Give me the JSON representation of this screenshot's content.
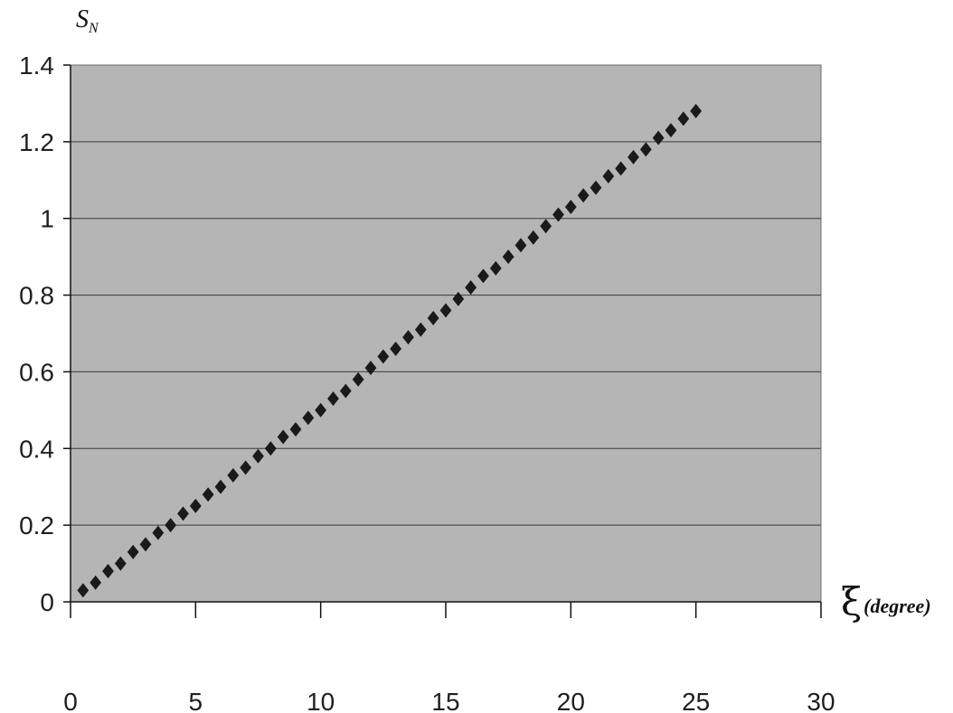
{
  "chart_data": {
    "type": "scatter",
    "ylabel": "S",
    "ylabel_subscript": "N",
    "xlabel_symbol": "ξ",
    "xlabel_unit": "(degree)",
    "xlim": [
      0,
      30
    ],
    "ylim": [
      0,
      1.4
    ],
    "x_ticks": [
      "0",
      "5",
      "10",
      "15",
      "20",
      "25",
      "30"
    ],
    "y_ticks": [
      "0",
      "0.2",
      "0.4",
      "0.6",
      "0.8",
      "1",
      "1.2",
      "1.4"
    ],
    "grid": "horizontal",
    "plot_background": "#b5b5b5",
    "marker_color": "#1a1a1a",
    "marker_shape": "diamond",
    "x": [
      0.5,
      1.0,
      1.5,
      2.0,
      2.5,
      3.0,
      3.5,
      4.0,
      4.5,
      5.0,
      5.5,
      6.0,
      6.5,
      7.0,
      7.5,
      8.0,
      8.5,
      9.0,
      9.5,
      10.0,
      10.5,
      11.0,
      11.5,
      12.0,
      12.5,
      13.0,
      13.5,
      14.0,
      14.5,
      15.0,
      15.5,
      16.0,
      16.5,
      17.0,
      17.5,
      18.0,
      18.5,
      19.0,
      19.5,
      20.0,
      20.5,
      21.0,
      21.5,
      22.0,
      22.5,
      23.0,
      23.5,
      24.0,
      24.5,
      25.0
    ],
    "y": [
      0.03,
      0.05,
      0.08,
      0.1,
      0.13,
      0.15,
      0.18,
      0.2,
      0.23,
      0.25,
      0.28,
      0.3,
      0.33,
      0.35,
      0.38,
      0.4,
      0.43,
      0.45,
      0.48,
      0.5,
      0.53,
      0.55,
      0.58,
      0.61,
      0.64,
      0.66,
      0.69,
      0.71,
      0.74,
      0.76,
      0.79,
      0.82,
      0.85,
      0.87,
      0.9,
      0.93,
      0.95,
      0.98,
      1.01,
      1.03,
      1.06,
      1.08,
      1.11,
      1.13,
      1.16,
      1.18,
      1.21,
      1.23,
      1.26,
      1.28
    ]
  }
}
